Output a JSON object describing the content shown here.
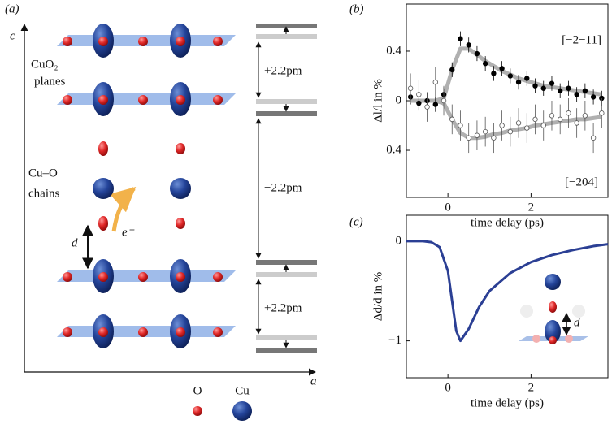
{
  "diagram": {
    "panel_label": "(a)",
    "axis_c": "c",
    "axis_a": "a",
    "planes_label": [
      "CuO₂",
      "planes"
    ],
    "chains_label": [
      "Cu–O",
      "chains"
    ],
    "spacing_labels": [
      "+2.2pm",
      "−2.2pm",
      "+2.2pm"
    ],
    "distance_label": "d",
    "electron_label": "e⁻",
    "legend": [
      "O",
      "Cu"
    ]
  },
  "chart_data": [
    {
      "type": "scatter",
      "panel_label": "(b)",
      "xlabel": "time delay (ps)",
      "ylabel": "Δl/l in %",
      "xlim": [
        -1,
        3.85
      ],
      "ylim": [
        -0.78,
        0.78
      ],
      "xticks": [
        0,
        2
      ],
      "yticks": [
        {
          "value": -0.4,
          "label": "−0.4"
        },
        0,
        0.4
      ],
      "x": [
        -0.9,
        -0.7,
        -0.5,
        -0.3,
        -0.1,
        0.1,
        0.3,
        0.5,
        0.7,
        0.9,
        1.1,
        1.3,
        1.5,
        1.7,
        1.9,
        2.1,
        2.3,
        2.5,
        2.7,
        2.9,
        3.1,
        3.3,
        3.5,
        3.7
      ],
      "series": [
        {
          "type": "line",
          "color": "#b0b0b0",
          "values": [
            0,
            0,
            0,
            0,
            0.02,
            0.25,
            0.42,
            0.42,
            0.37,
            0.32,
            0.28,
            0.24,
            0.21,
            0.18,
            0.16,
            0.14,
            0.12,
            0.11,
            0.1,
            0.09,
            0.08,
            0.07,
            0.06,
            0.05
          ]
        },
        {
          "type": "line",
          "color": "#b0b0b0",
          "values": [
            0,
            0,
            0,
            0,
            -0.02,
            -0.15,
            -0.26,
            -0.3,
            -0.3,
            -0.29,
            -0.27,
            -0.26,
            -0.24,
            -0.23,
            -0.22,
            -0.2,
            -0.19,
            -0.18,
            -0.17,
            -0.16,
            -0.15,
            -0.15,
            -0.14,
            -0.13
          ]
        },
        {
          "name": "[−2−11]",
          "marker": "filled",
          "color": "#000000",
          "values": [
            0.03,
            -0.02,
            0,
            -0.03,
            0.05,
            0.25,
            0.5,
            0.45,
            0.38,
            0.3,
            0.22,
            0.26,
            0.2,
            0.15,
            0.18,
            0.12,
            0.1,
            0.14,
            0.08,
            0.1,
            0.05,
            0.08,
            0.03,
            0.02
          ],
          "errors": [
            0.06,
            0.06,
            0.06,
            0.06,
            0.06,
            0.06,
            0.06,
            0.06,
            0.06,
            0.06,
            0.06,
            0.06,
            0.06,
            0.06,
            0.06,
            0.06,
            0.06,
            0.06,
            0.06,
            0.06,
            0.06,
            0.06,
            0.06,
            0.06
          ]
        },
        {
          "name": "[−204]",
          "marker": "open",
          "color": "#555555",
          "values": [
            0.1,
            0.05,
            -0.05,
            0.15,
            0,
            -0.15,
            -0.2,
            -0.3,
            -0.28,
            -0.25,
            -0.3,
            -0.2,
            -0.25,
            -0.18,
            -0.22,
            -0.15,
            -0.2,
            -0.12,
            -0.15,
            -0.1,
            -0.18,
            -0.12,
            -0.3,
            -0.1
          ],
          "errors": [
            0.12,
            0.12,
            0.12,
            0.12,
            0.12,
            0.12,
            0.12,
            0.12,
            0.12,
            0.12,
            0.12,
            0.12,
            0.12,
            0.12,
            0.12,
            0.12,
            0.12,
            0.12,
            0.12,
            0.12,
            0.12,
            0.12,
            0.12,
            0.12
          ]
        }
      ]
    },
    {
      "type": "line",
      "panel_label": "(c)",
      "xlabel": "time delay (ps)",
      "ylabel": "Δd/d in %",
      "xlim": [
        -1,
        3.85
      ],
      "ylim": [
        -1.37,
        0.26
      ],
      "xticks": [
        0,
        2
      ],
      "yticks": [
        {
          "value": -1,
          "label": "−1"
        },
        0
      ],
      "annotation": "d",
      "x": [
        -1,
        -0.6,
        -0.4,
        -0.2,
        0,
        0.1,
        0.2,
        0.3,
        0.5,
        0.75,
        1,
        1.5,
        2,
        2.5,
        3,
        3.5,
        3.85
      ],
      "series": [
        {
          "color": "#2b3f94",
          "values": [
            0,
            0,
            -0.01,
            -0.06,
            -0.3,
            -0.6,
            -0.9,
            -1,
            -0.88,
            -0.66,
            -0.5,
            -0.32,
            -0.21,
            -0.14,
            -0.09,
            -0.05,
            -0.03
          ]
        }
      ]
    }
  ]
}
